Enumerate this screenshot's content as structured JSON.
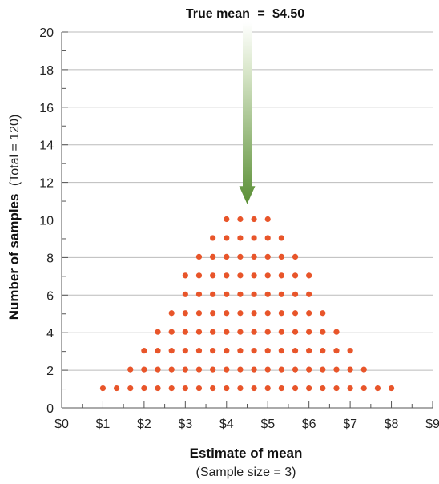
{
  "chart_data": {
    "type": "scatter",
    "style": "dot plot",
    "annotation": {
      "label": "True mean",
      "equals": "=",
      "value_text": "$4.50",
      "x": 4.5
    },
    "xlabel": "Estimate of mean",
    "xlabel_sub": "(Sample size = 3)",
    "ylabel_bold": "Number of samples",
    "ylabel_sub": "(Total = 120)",
    "xlim": [
      0,
      9
    ],
    "ylim": [
      0,
      20
    ],
    "x_ticks": [
      "$0",
      "$1",
      "$2",
      "$3",
      "$4",
      "$5",
      "$6",
      "$7",
      "$8",
      "$9"
    ],
    "y_ticks": [
      "0",
      "2",
      "4",
      "6",
      "8",
      "10",
      "12",
      "14",
      "16",
      "18",
      "20"
    ],
    "grid": "horizontal",
    "colors": {
      "dots": "#e8552a",
      "arrow_top": "#dbe8cd",
      "arrow_bottom": "#5a8f35",
      "grid": "#bbbbbb",
      "axis": "#555555"
    },
    "points_description": "Each dot represents one sample mean; dots stacked vertically by count",
    "columns": [
      {
        "x": 1.0,
        "count": 1
      },
      {
        "x": 1.333,
        "count": 1
      },
      {
        "x": 1.667,
        "count": 2
      },
      {
        "x": 2.0,
        "count": 3
      },
      {
        "x": 2.333,
        "count": 4
      },
      {
        "x": 2.667,
        "count": 5
      },
      {
        "x": 3.0,
        "count": 7
      },
      {
        "x": 3.333,
        "count": 8
      },
      {
        "x": 3.667,
        "count": 9
      },
      {
        "x": 4.0,
        "count": 10
      },
      {
        "x": 4.333,
        "count": 10
      },
      {
        "x": 4.667,
        "count": 10
      },
      {
        "x": 5.0,
        "count": 10
      },
      {
        "x": 5.333,
        "count": 9
      },
      {
        "x": 5.667,
        "count": 8
      },
      {
        "x": 6.0,
        "count": 7
      },
      {
        "x": 6.333,
        "count": 5
      },
      {
        "x": 6.667,
        "count": 4
      },
      {
        "x": 7.0,
        "count": 3
      },
      {
        "x": 7.333,
        "count": 2
      },
      {
        "x": 7.667,
        "count": 1
      },
      {
        "x": 8.0,
        "count": 1
      }
    ]
  }
}
